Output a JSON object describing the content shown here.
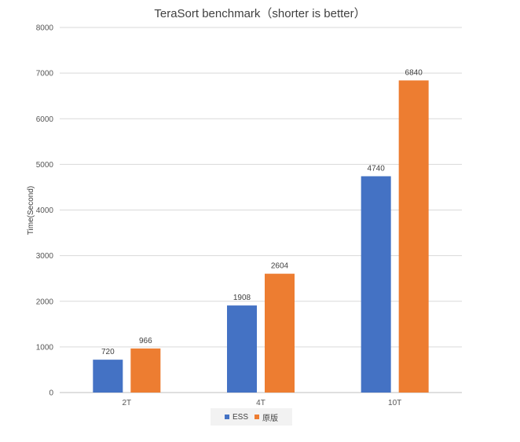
{
  "chart_data": {
    "type": "bar",
    "title": "TeraSort benchmark（shorter is better）",
    "xlabel": "",
    "ylabel": "Time(Second)",
    "categories": [
      "2T",
      "4T",
      "10T"
    ],
    "series": [
      {
        "name": "ESS",
        "values": [
          720,
          1908,
          4740
        ],
        "color": "#4472c4"
      },
      {
        "name": "原版",
        "values": [
          966,
          2604,
          6840
        ],
        "color": "#ed7d31"
      }
    ],
    "ylim": [
      0,
      8000
    ],
    "yticks": [
      0,
      1000,
      2000,
      3000,
      4000,
      5000,
      6000,
      7000,
      8000
    ],
    "grid": true,
    "legend_position": "bottom"
  }
}
